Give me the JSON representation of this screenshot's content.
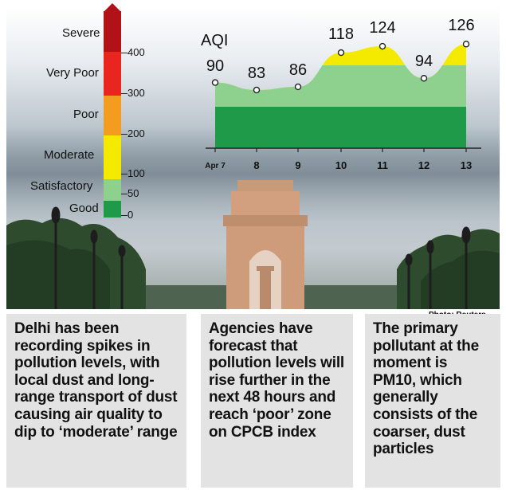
{
  "chart_data": [
    {
      "type": "area",
      "ylabel": "AQI",
      "x": [
        "Apr 7",
        "8",
        "9",
        "10",
        "11",
        "12",
        "13"
      ],
      "values": [
        90,
        83,
        86,
        118,
        124,
        94,
        126
      ],
      "ylim": [
        0,
        130
      ],
      "colors": {
        "moderate_band": "#f3ea00",
        "satisfactory_band": "#8ed08d",
        "good_band": "#1f9a49"
      }
    },
    {
      "type": "bar",
      "categories": [
        "Good",
        "Satisfactory",
        "Moderate",
        "Poor",
        "Very Poor",
        "Severe"
      ],
      "ticks": [
        0,
        50,
        100,
        200,
        300,
        400
      ],
      "colors": [
        "#1f9a49",
        "#8ed08d",
        "#f3ea00",
        "#f39c1f",
        "#e8261f",
        "#b01218"
      ]
    }
  ],
  "credit": "Photo: Reuters",
  "panels": [
    {
      "text": "Delhi has been recording spikes in pollution levels, with local dust and long-range transport of dust causing air quality to dip to ‘moderate’ range"
    },
    {
      "text": "Agencies have forecast that pollution levels will rise further in the next 48 hours and reach ‘poor’ zone on CPCB index"
    },
    {
      "text": "The primary pollutant at the moment is PM10, which generally consists of the coarser, dust particles"
    }
  ]
}
